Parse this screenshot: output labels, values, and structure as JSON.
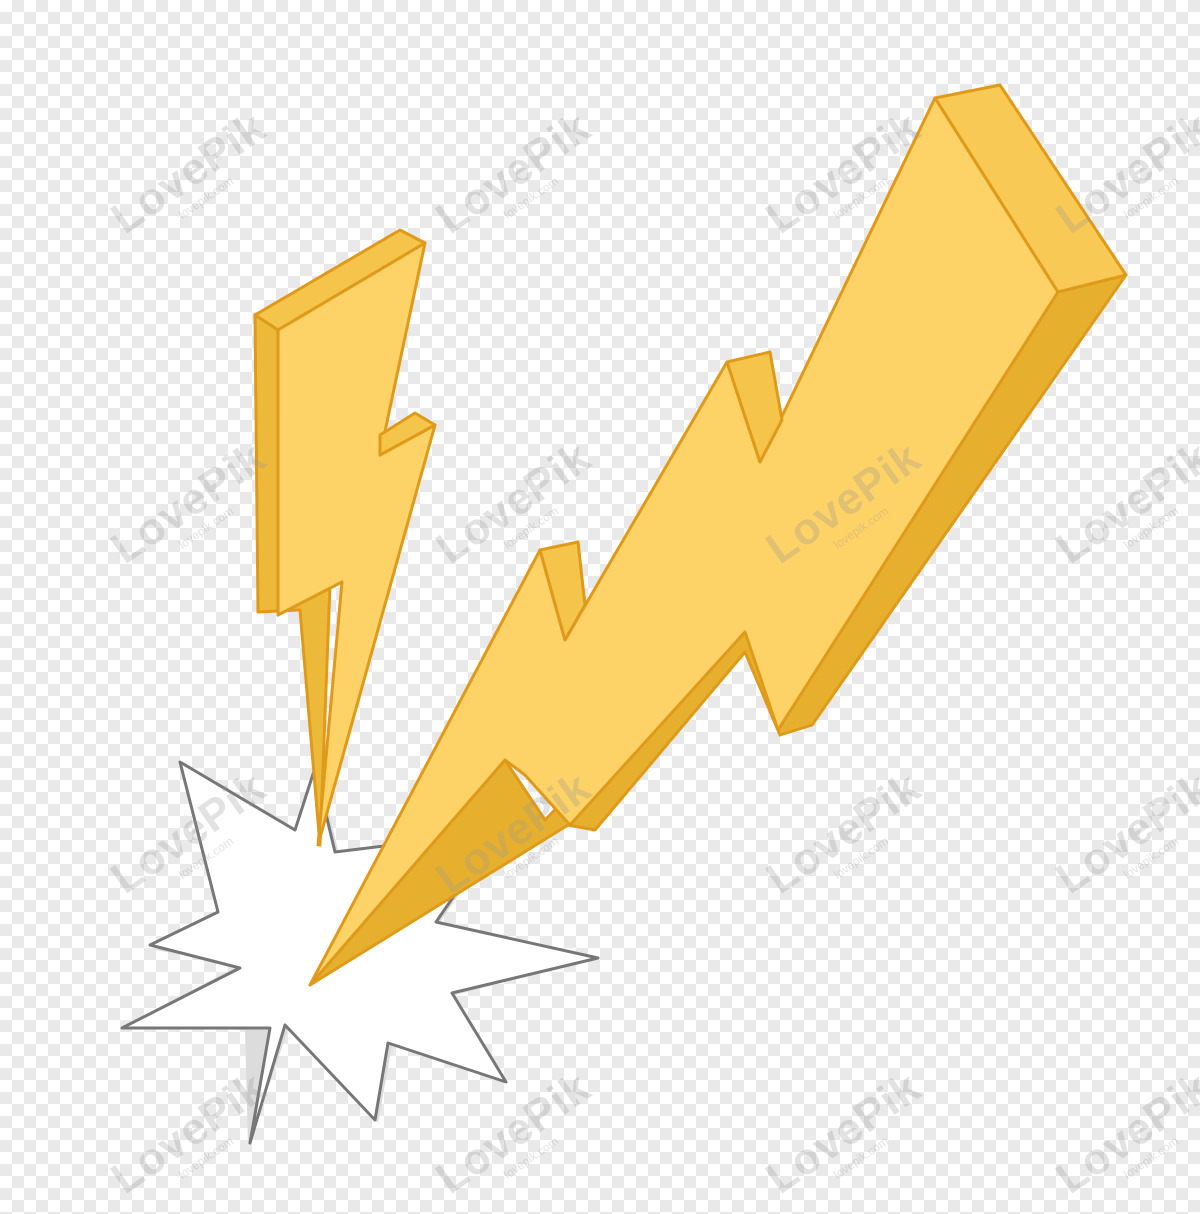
{
  "watermark": {
    "main": "LovePik",
    "sub": "lovepik.com"
  },
  "colors": {
    "bolt_front": "#FDD266",
    "bolt_side": "#EDB93A",
    "bolt_top": "#F5C44A",
    "bolt_outline": "#E09A1A",
    "burst_fill": "#FFFFFF",
    "burst_shadow": "#DCDCDC",
    "burst_outline": "#777777"
  },
  "icons": [
    "lightning-bolt-icon",
    "impact-burst-icon"
  ]
}
